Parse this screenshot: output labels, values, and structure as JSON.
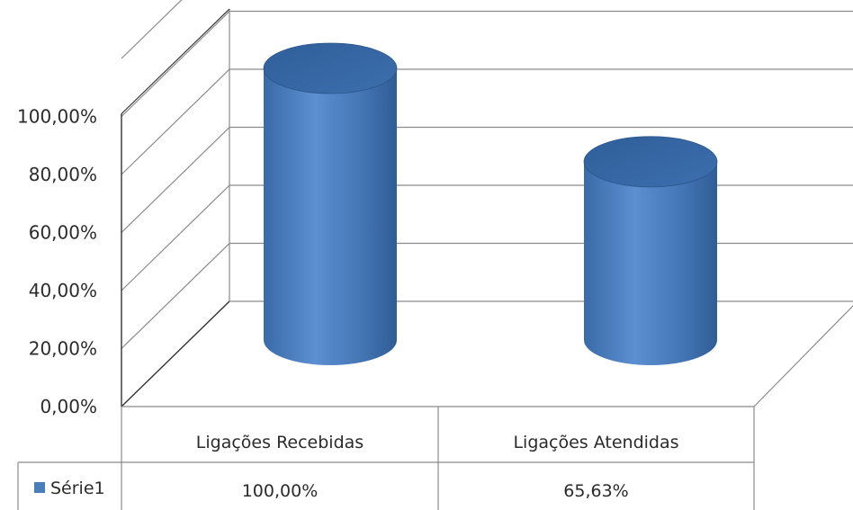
{
  "chart_data": {
    "type": "bar",
    "style": "3d-cylinder",
    "categories": [
      "Ligações Recebidas",
      "Ligações Atendidas"
    ],
    "series": [
      {
        "name": "Série1",
        "values": [
          100.0,
          65.63
        ],
        "value_labels": [
          "100,00%",
          "65,63%"
        ],
        "color": "#4a7ebb"
      }
    ],
    "y_ticks": [
      "0,00%",
      "20,00%",
      "40,00%",
      "60,00%",
      "80,00%",
      "100,00%"
    ],
    "ylim": [
      0,
      100
    ],
    "grid": true,
    "data_table": true,
    "legend": "data-table-left"
  }
}
